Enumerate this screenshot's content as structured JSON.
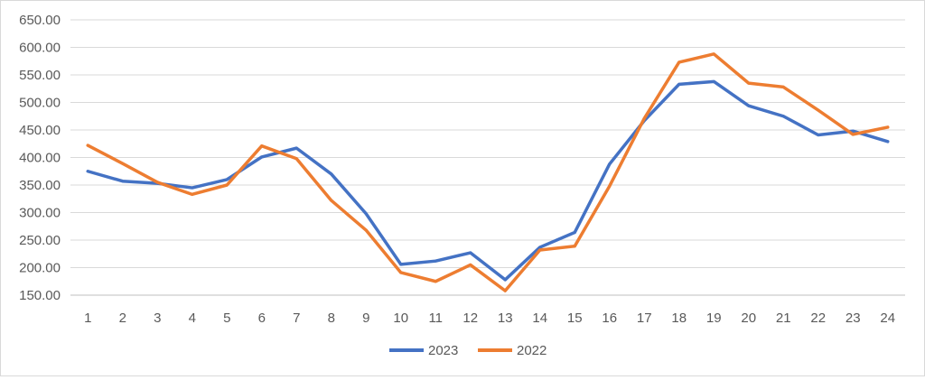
{
  "chart_data": {
    "type": "line",
    "title": "",
    "xlabel": "",
    "ylabel": "",
    "categories": [
      "1",
      "2",
      "3",
      "4",
      "5",
      "6",
      "7",
      "8",
      "9",
      "10",
      "11",
      "12",
      "13",
      "14",
      "15",
      "16",
      "17",
      "18",
      "19",
      "20",
      "21",
      "22",
      "23",
      "24"
    ],
    "ylim": [
      150,
      650
    ],
    "yticks": [
      "150.00",
      "200.00",
      "250.00",
      "300.00",
      "350.00",
      "400.00",
      "450.00",
      "500.00",
      "550.00",
      "600.00",
      "650.00"
    ],
    "grid": "horizontal",
    "legend_position": "bottom",
    "series": [
      {
        "name": "2023",
        "color": "#4472C4",
        "values": [
          375,
          357,
          353,
          345,
          360,
          401,
          417,
          370,
          298,
          206,
          212,
          227,
          178,
          237,
          264,
          388,
          467,
          533,
          538,
          494,
          475,
          441,
          448,
          429
        ]
      },
      {
        "name": "2022",
        "color": "#ED7D31",
        "values": [
          422,
          389,
          355,
          333,
          350,
          421,
          398,
          322,
          268,
          191,
          175,
          205,
          158,
          232,
          239,
          348,
          471,
          573,
          588,
          535,
          528,
          486,
          442,
          455
        ]
      }
    ]
  }
}
